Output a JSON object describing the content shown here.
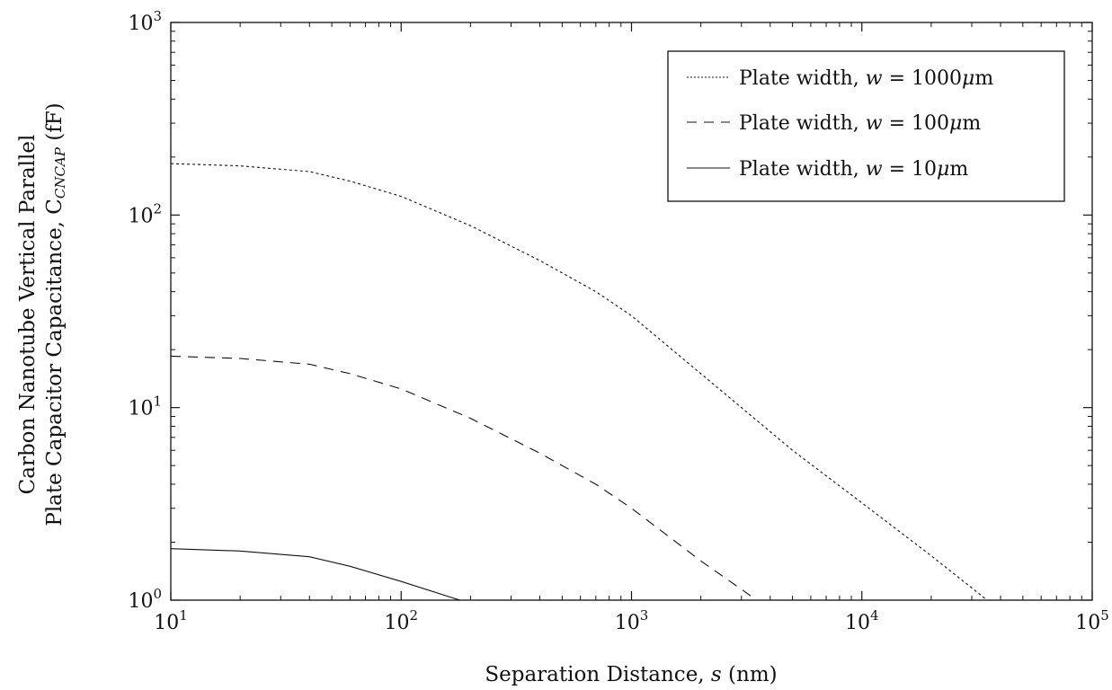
{
  "chart_data": {
    "type": "line",
    "xscale": "log",
    "yscale": "log",
    "xlim": [
      10,
      100000
    ],
    "ylim": [
      1,
      1000
    ],
    "grid": false,
    "legend_position": "top-right",
    "xlabel": {
      "prefix": "Separation Distance, ",
      "var": "s",
      "suffix": " (nm)"
    },
    "ylabel": {
      "line1": "Carbon Nanotube Vertical Parallel",
      "line2_prefix": "Plate Capacitor Capacitance, C",
      "line2_sub": "CNCAP",
      "line2_suffix": " (fF)"
    },
    "x_ticks": [
      {
        "base": "10",
        "exp": "1",
        "value": 10
      },
      {
        "base": "10",
        "exp": "2",
        "value": 100
      },
      {
        "base": "10",
        "exp": "3",
        "value": 1000
      },
      {
        "base": "10",
        "exp": "4",
        "value": 10000
      },
      {
        "base": "10",
        "exp": "5",
        "value": 100000
      }
    ],
    "y_ticks": [
      {
        "base": "10",
        "exp": "0",
        "value": 1
      },
      {
        "base": "10",
        "exp": "1",
        "value": 10
      },
      {
        "base": "10",
        "exp": "2",
        "value": 100
      },
      {
        "base": "10",
        "exp": "3",
        "value": 1000
      }
    ],
    "series": [
      {
        "name": "Plate width, w = 1000μm",
        "legend": {
          "prefix": "Plate width, ",
          "var": "w",
          "suffix": " = 1000",
          "mu": "μ",
          "unit": "m"
        },
        "style": "dotted",
        "x": [
          10,
          20,
          40,
          60,
          100,
          200,
          400,
          700,
          1000,
          2000,
          3000,
          5000,
          10000,
          20000,
          35000
        ],
        "y": [
          185,
          180,
          168,
          150,
          125,
          88,
          58,
          40,
          30,
          15,
          10,
          6,
          3.2,
          1.7,
          1.0
        ]
      },
      {
        "name": "Plate width, w = 100μm",
        "legend": {
          "prefix": "Plate width, ",
          "var": "w",
          "suffix": " = 100",
          "mu": "μ",
          "unit": "m"
        },
        "style": "dashed",
        "x": [
          10,
          20,
          40,
          60,
          100,
          200,
          400,
          700,
          1000,
          2000,
          3500
        ],
        "y": [
          18.5,
          18,
          16.8,
          15,
          12.5,
          8.8,
          5.8,
          4.0,
          3.0,
          1.6,
          1.0
        ]
      },
      {
        "name": "Plate width, w = 10μm",
        "legend": {
          "prefix": "Plate width, ",
          "var": "w",
          "suffix": " = 10",
          "mu": "μ",
          "unit": "m"
        },
        "style": "solid",
        "x": [
          10,
          20,
          40,
          60,
          100,
          180
        ],
        "y": [
          1.85,
          1.8,
          1.68,
          1.5,
          1.25,
          1.0
        ]
      }
    ]
  }
}
